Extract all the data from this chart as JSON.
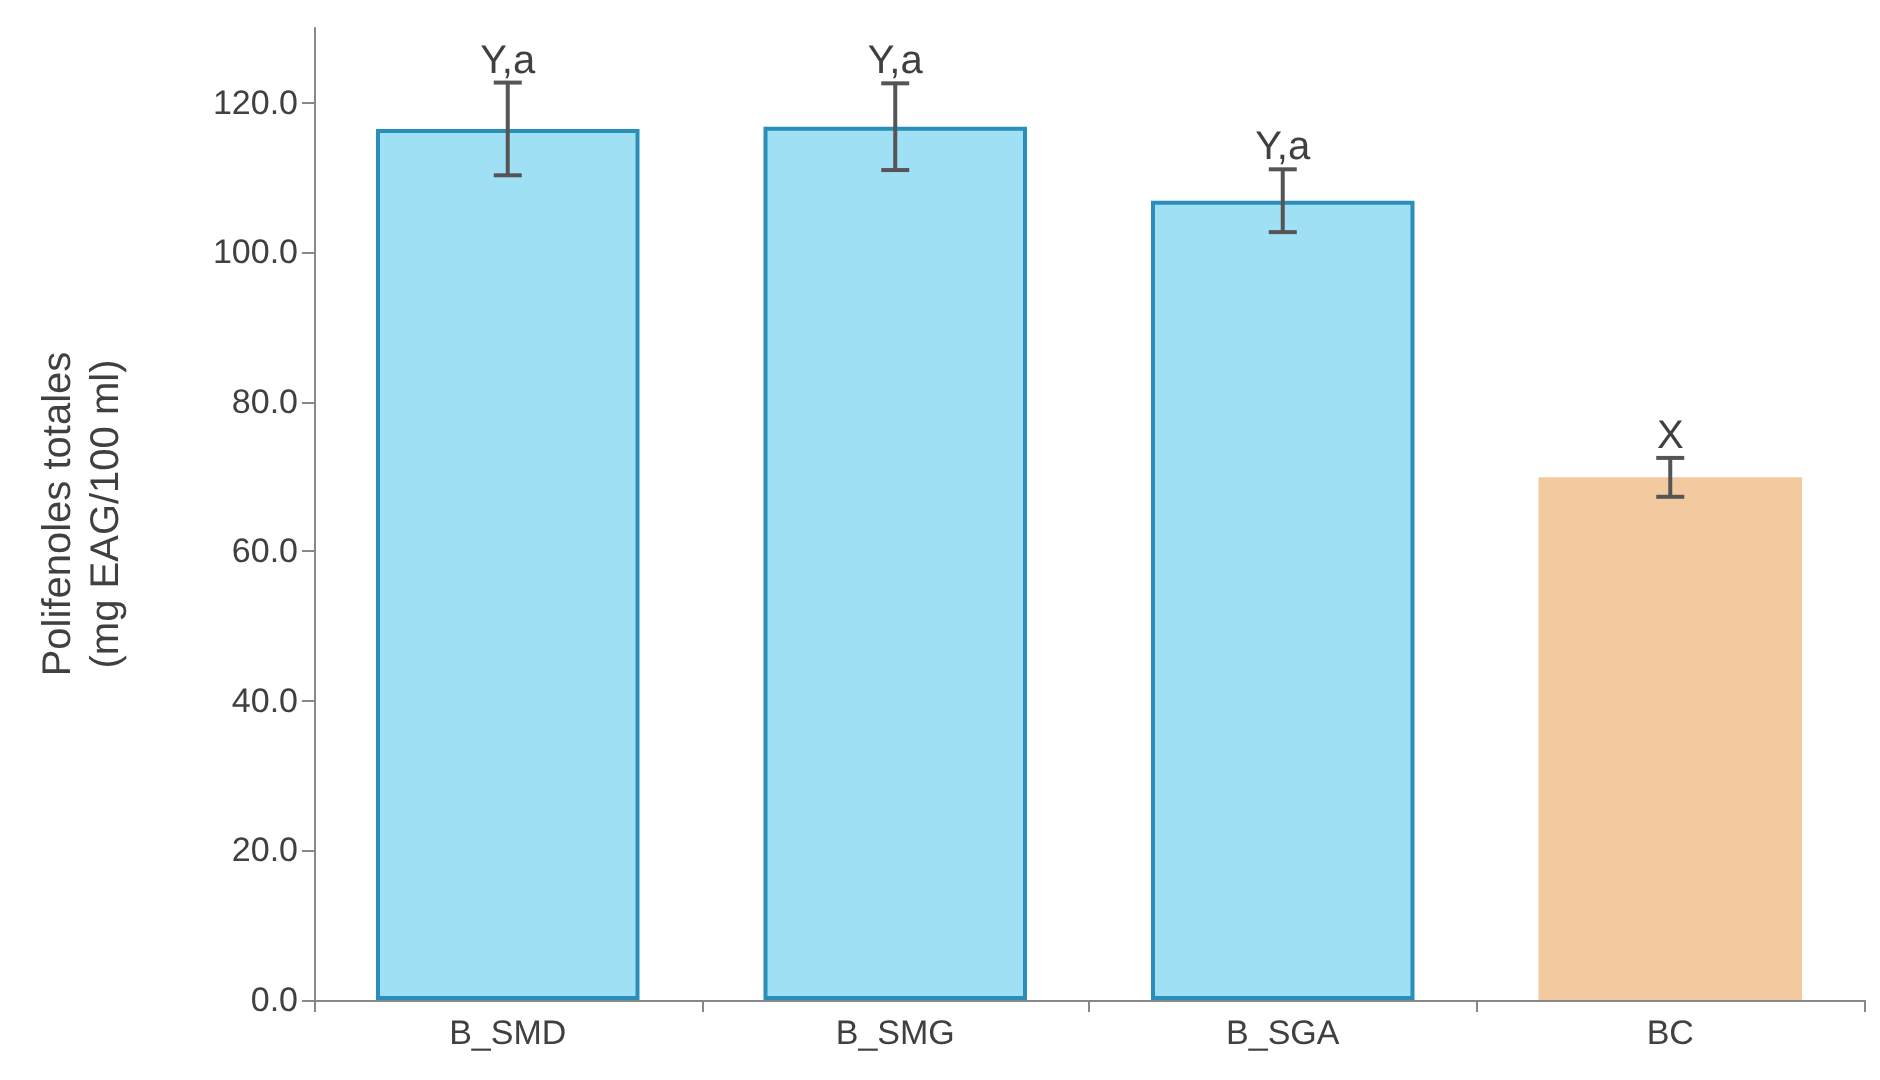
{
  "chart_data": {
    "type": "bar",
    "ylabel": "Polifenoles totales\n(mg EAG/100 ml)",
    "categories": [
      "B_SMD",
      "B_SMG",
      "B_SGA",
      "BC"
    ],
    "values": [
      116.5,
      116.8,
      106.9,
      69.9
    ],
    "errors": [
      6.2,
      5.8,
      4.2,
      2.6
    ],
    "colors": [
      "#9fe0f5",
      "#9fe0f5",
      "#9fe0f5",
      "#f3c9a0"
    ],
    "ylim": [
      0,
      130
    ],
    "yticks": [
      {
        "value": 0,
        "label": "0.0"
      },
      {
        "value": 20,
        "label": "20.0"
      },
      {
        "value": 40,
        "label": "40.0"
      },
      {
        "value": 60,
        "label": "60.0"
      },
      {
        "value": 80,
        "label": "80.0"
      },
      {
        "value": 100,
        "label": "100.0"
      },
      {
        "value": 120,
        "label": "120.0"
      }
    ],
    "annotations": [
      {
        "text": "Y,a",
        "x": "B_SMD",
        "y": 122.7
      },
      {
        "text": "Y,a",
        "x": "B_SMG",
        "y": 122.6
      },
      {
        "text": "Y,a",
        "x": "B_SGA",
        "y": 111.1
      },
      {
        "text": "X",
        "x": "BC",
        "y": 72.5
      }
    ],
    "grid": false
  }
}
